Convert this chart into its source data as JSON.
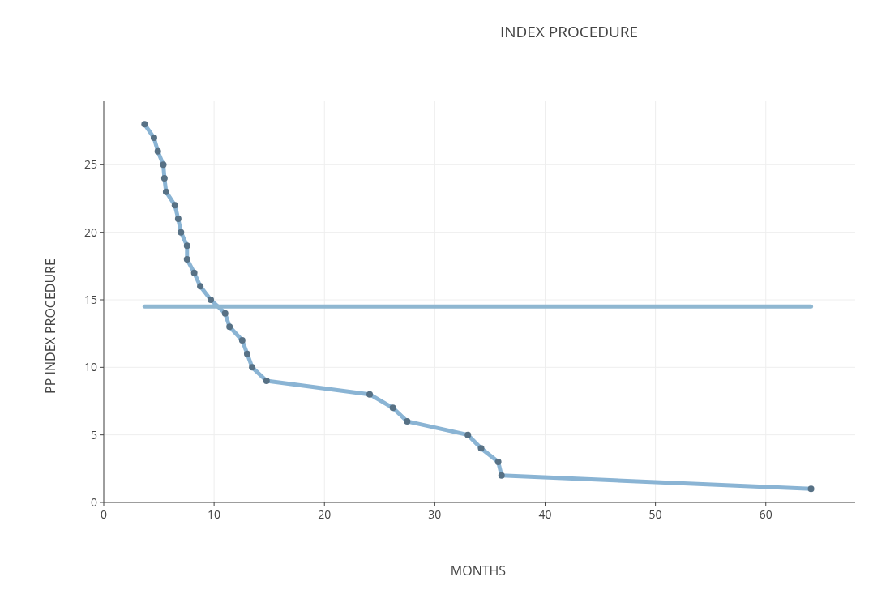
{
  "chart_data": {
    "type": "line",
    "title": "INDEX PROCEDURE",
    "xlabel": "MONTHS",
    "ylabel": "PP INDEX PROCEDURE",
    "xlim": [
      0,
      68.1
    ],
    "ylim": [
      0,
      29.7
    ],
    "xticks": [
      0,
      10,
      20,
      30,
      40,
      50,
      60
    ],
    "yticks": [
      0,
      5,
      10,
      15,
      20,
      25
    ],
    "grid": true,
    "marker": "circle",
    "line_style": "solid",
    "series": [
      {
        "color": "#8ab4d4",
        "x": [
          3.7,
          4.55,
          4.9,
          5.4,
          5.5,
          5.65,
          6.45,
          6.75,
          7.0,
          7.55,
          7.55,
          8.2,
          8.75,
          9.7,
          11.0,
          11.4,
          12.55,
          13.0,
          13.45,
          14.75,
          24.1,
          26.2,
          27.5,
          33.0,
          34.2,
          35.75,
          36.05,
          64.1
        ],
        "values": [
          28,
          27,
          26,
          25,
          24,
          23,
          22,
          21,
          20,
          19,
          18,
          17,
          16,
          15,
          14,
          13,
          12,
          11,
          10,
          9,
          8,
          7,
          6,
          5,
          4,
          3,
          2,
          1
        ]
      },
      {
        "color": "#8fb7d1",
        "marker": "none",
        "x": [
          3.7,
          64.1
        ],
        "values": [
          14.5,
          14.5
        ]
      }
    ]
  }
}
